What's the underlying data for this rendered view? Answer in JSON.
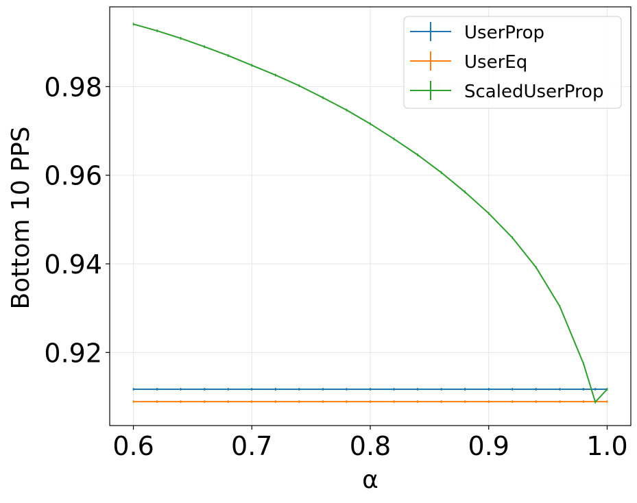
{
  "chart_data": {
    "type": "line",
    "title": "",
    "xlabel": "α",
    "ylabel": "Bottom 10 PPS",
    "xlim": [
      0.58,
      1.02
    ],
    "ylim": [
      0.9035,
      0.998
    ],
    "x_ticks": [
      0.6,
      0.7,
      0.8,
      0.9,
      1.0
    ],
    "x_tick_labels": [
      "0.6",
      "0.7",
      "0.8",
      "0.9",
      "1.0"
    ],
    "y_ticks": [
      0.92,
      0.94,
      0.96,
      0.98
    ],
    "y_tick_labels": [
      "0.92",
      "0.94",
      "0.96",
      "0.98"
    ],
    "grid": true,
    "legend_position": "top-right",
    "x": [
      0.6,
      0.62,
      0.64,
      0.66,
      0.68,
      0.7,
      0.72,
      0.74,
      0.76,
      0.78,
      0.8,
      0.82,
      0.84,
      0.86,
      0.88,
      0.9,
      0.92,
      0.94,
      0.96,
      0.98,
      0.99,
      1.0
    ],
    "series": [
      {
        "name": "UserProp",
        "color": "#1f77b4",
        "values": [
          0.9117,
          0.9117,
          0.9117,
          0.9117,
          0.9117,
          0.9117,
          0.9117,
          0.9117,
          0.9117,
          0.9117,
          0.9117,
          0.9117,
          0.9117,
          0.9117,
          0.9117,
          0.9117,
          0.9117,
          0.9117,
          0.9117,
          0.9117,
          0.9117,
          0.9117
        ]
      },
      {
        "name": "UserEq",
        "color": "#ff7f0e",
        "values": [
          0.9089,
          0.9089,
          0.9089,
          0.9089,
          0.9089,
          0.9089,
          0.9089,
          0.9089,
          0.9089,
          0.9089,
          0.9089,
          0.9089,
          0.9089,
          0.9089,
          0.9089,
          0.9089,
          0.9089,
          0.9089,
          0.9089,
          0.9089,
          0.9089,
          0.9089
        ]
      },
      {
        "name": "ScaledUserProp",
        "color": "#2ca02c",
        "values": [
          0.9941,
          0.9926,
          0.9909,
          0.989,
          0.987,
          0.9848,
          0.9826,
          0.9802,
          0.9775,
          0.9747,
          0.9716,
          0.9682,
          0.9646,
          0.9606,
          0.9562,
          0.9514,
          0.9459,
          0.9392,
          0.9304,
          0.9175,
          0.9088,
          0.9117
        ]
      }
    ]
  }
}
